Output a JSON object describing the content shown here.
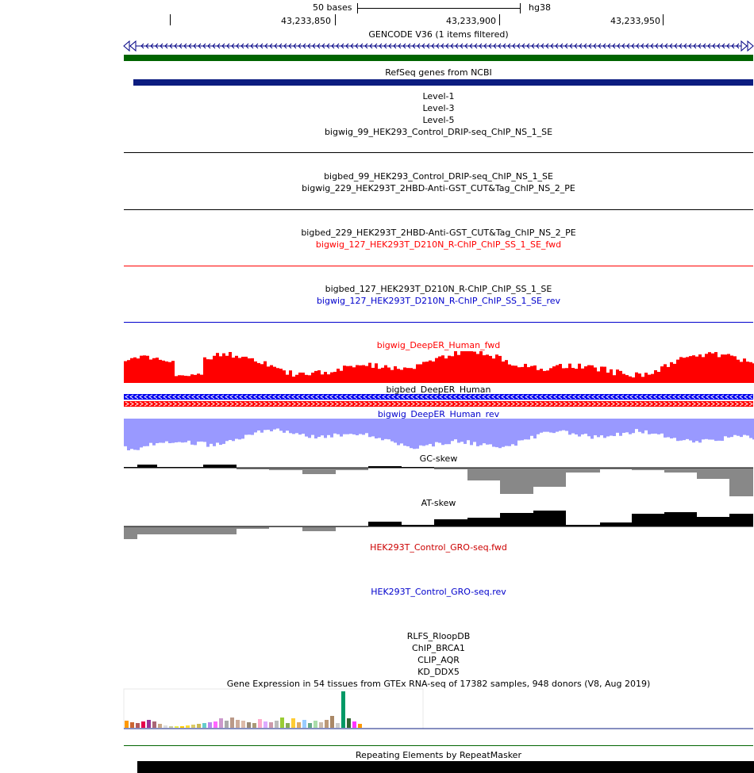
{
  "ruler": {
    "scale_label": "50 bases",
    "assembly": "hg38",
    "positions": [
      "43,233,850",
      "43,233,900",
      "43,233,950"
    ]
  },
  "tracks": {
    "gencode": "GENCODE V36 (1 items filtered)",
    "refseq": "RefSeq genes from NCBI",
    "level1": "Level-1",
    "level3": "Level-3",
    "level5": "Level-5",
    "bigwig_99": "bigwig_99_HEK293_Control_DRIP-seq_ChIP_NS_1_SE",
    "bigbed_99": "bigbed_99_HEK293_Control_DRIP-seq_ChIP_NS_1_SE",
    "bigwig_229": "bigwig_229_HEK293T_2HBD-Anti-GST_CUT&Tag_ChIP_NS_2_PE",
    "bigbed_229": "bigbed_229_HEK293T_2HBD-Anti-GST_CUT&Tag_ChIP_NS_2_PE",
    "bigwig_127_fwd": "bigwig_127_HEK293T_D210N_R-ChIP_ChIP_SS_1_SE_fwd",
    "bigbed_127": "bigbed_127_HEK293T_D210N_R-ChIP_ChIP_SS_1_SE",
    "bigwig_127_rev": "bigwig_127_HEK293T_D210N_R-ChIP_ChIP_SS_1_SE_rev",
    "deeper_fwd": "bigwig_DeepER_Human_fwd",
    "deeper_bed": "bigbed_DeepER_Human",
    "deeper_rev": "bigwig_DeepER_Human_rev",
    "gc_skew": "GC-skew",
    "at_skew": "AT-skew",
    "gro_fwd": "HEK293T_Control_GRO-seq.fwd",
    "gro_rev": "HEK293T_Control_GRO-seq.rev",
    "rlfs": "RLFS_RloopDB",
    "chip_brca1": "ChIP_BRCA1",
    "clip_aqr": "CLIP_AQR",
    "kd_ddx5": "KD_DDX5",
    "gtex": "Gene Expression in 54 tissues from GTEx RNA-seq of 17382 samples, 948 donors (V8, Aug 2019)",
    "repeatmasker": "Repeating Elements by RepeatMasker"
  },
  "colors": {
    "gencode": "#006400",
    "refseq": "#0c1c80",
    "red": "#ff0000",
    "blue": "#0000cc",
    "rev_fill": "#9999ff",
    "gc_neg": "#888888"
  }
}
